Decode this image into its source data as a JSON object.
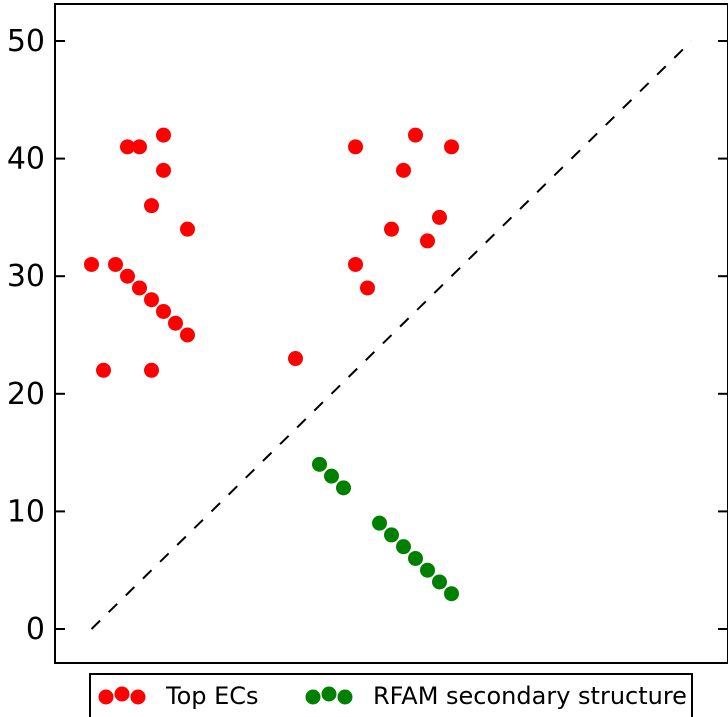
{
  "chart_data": {
    "type": "scatter",
    "title": "",
    "xlabel": "",
    "ylabel": "",
    "ylim": [
      -3,
      53
    ],
    "xlim": [
      -3,
      50
    ],
    "y_ticks": [
      "0",
      "10",
      "20",
      "30",
      "40",
      "50"
    ],
    "grid": false,
    "legend_placement": "bottom-center",
    "reference_line": {
      "style": "dashed",
      "color": "#000000",
      "from": [
        0,
        0
      ],
      "to": [
        50,
        50
      ]
    },
    "series": [
      {
        "name": "Top ECs",
        "color": "#ff0000",
        "points": [
          [
            0,
            31
          ],
          [
            1,
            22
          ],
          [
            2,
            31
          ],
          [
            3,
            41
          ],
          [
            3,
            30
          ],
          [
            4,
            41
          ],
          [
            4,
            29
          ],
          [
            5,
            36
          ],
          [
            5,
            28
          ],
          [
            5,
            22
          ],
          [
            6,
            42
          ],
          [
            6,
            39
          ],
          [
            6,
            27
          ],
          [
            7,
            26
          ],
          [
            8,
            34
          ],
          [
            8,
            25
          ],
          [
            17,
            23
          ],
          [
            22,
            41
          ],
          [
            22,
            31
          ],
          [
            23,
            29
          ],
          [
            25,
            34
          ],
          [
            26,
            39
          ],
          [
            27,
            42
          ],
          [
            28,
            33
          ],
          [
            29,
            35
          ],
          [
            30,
            41
          ]
        ]
      },
      {
        "name": "RFAM secondary structure",
        "color": "#008000",
        "points": [
          [
            19,
            14
          ],
          [
            20,
            13
          ],
          [
            21,
            12
          ],
          [
            24,
            9
          ],
          [
            25,
            8
          ],
          [
            26,
            7
          ],
          [
            27,
            6
          ],
          [
            28,
            5
          ],
          [
            29,
            4
          ],
          [
            30,
            3
          ]
        ]
      }
    ]
  }
}
